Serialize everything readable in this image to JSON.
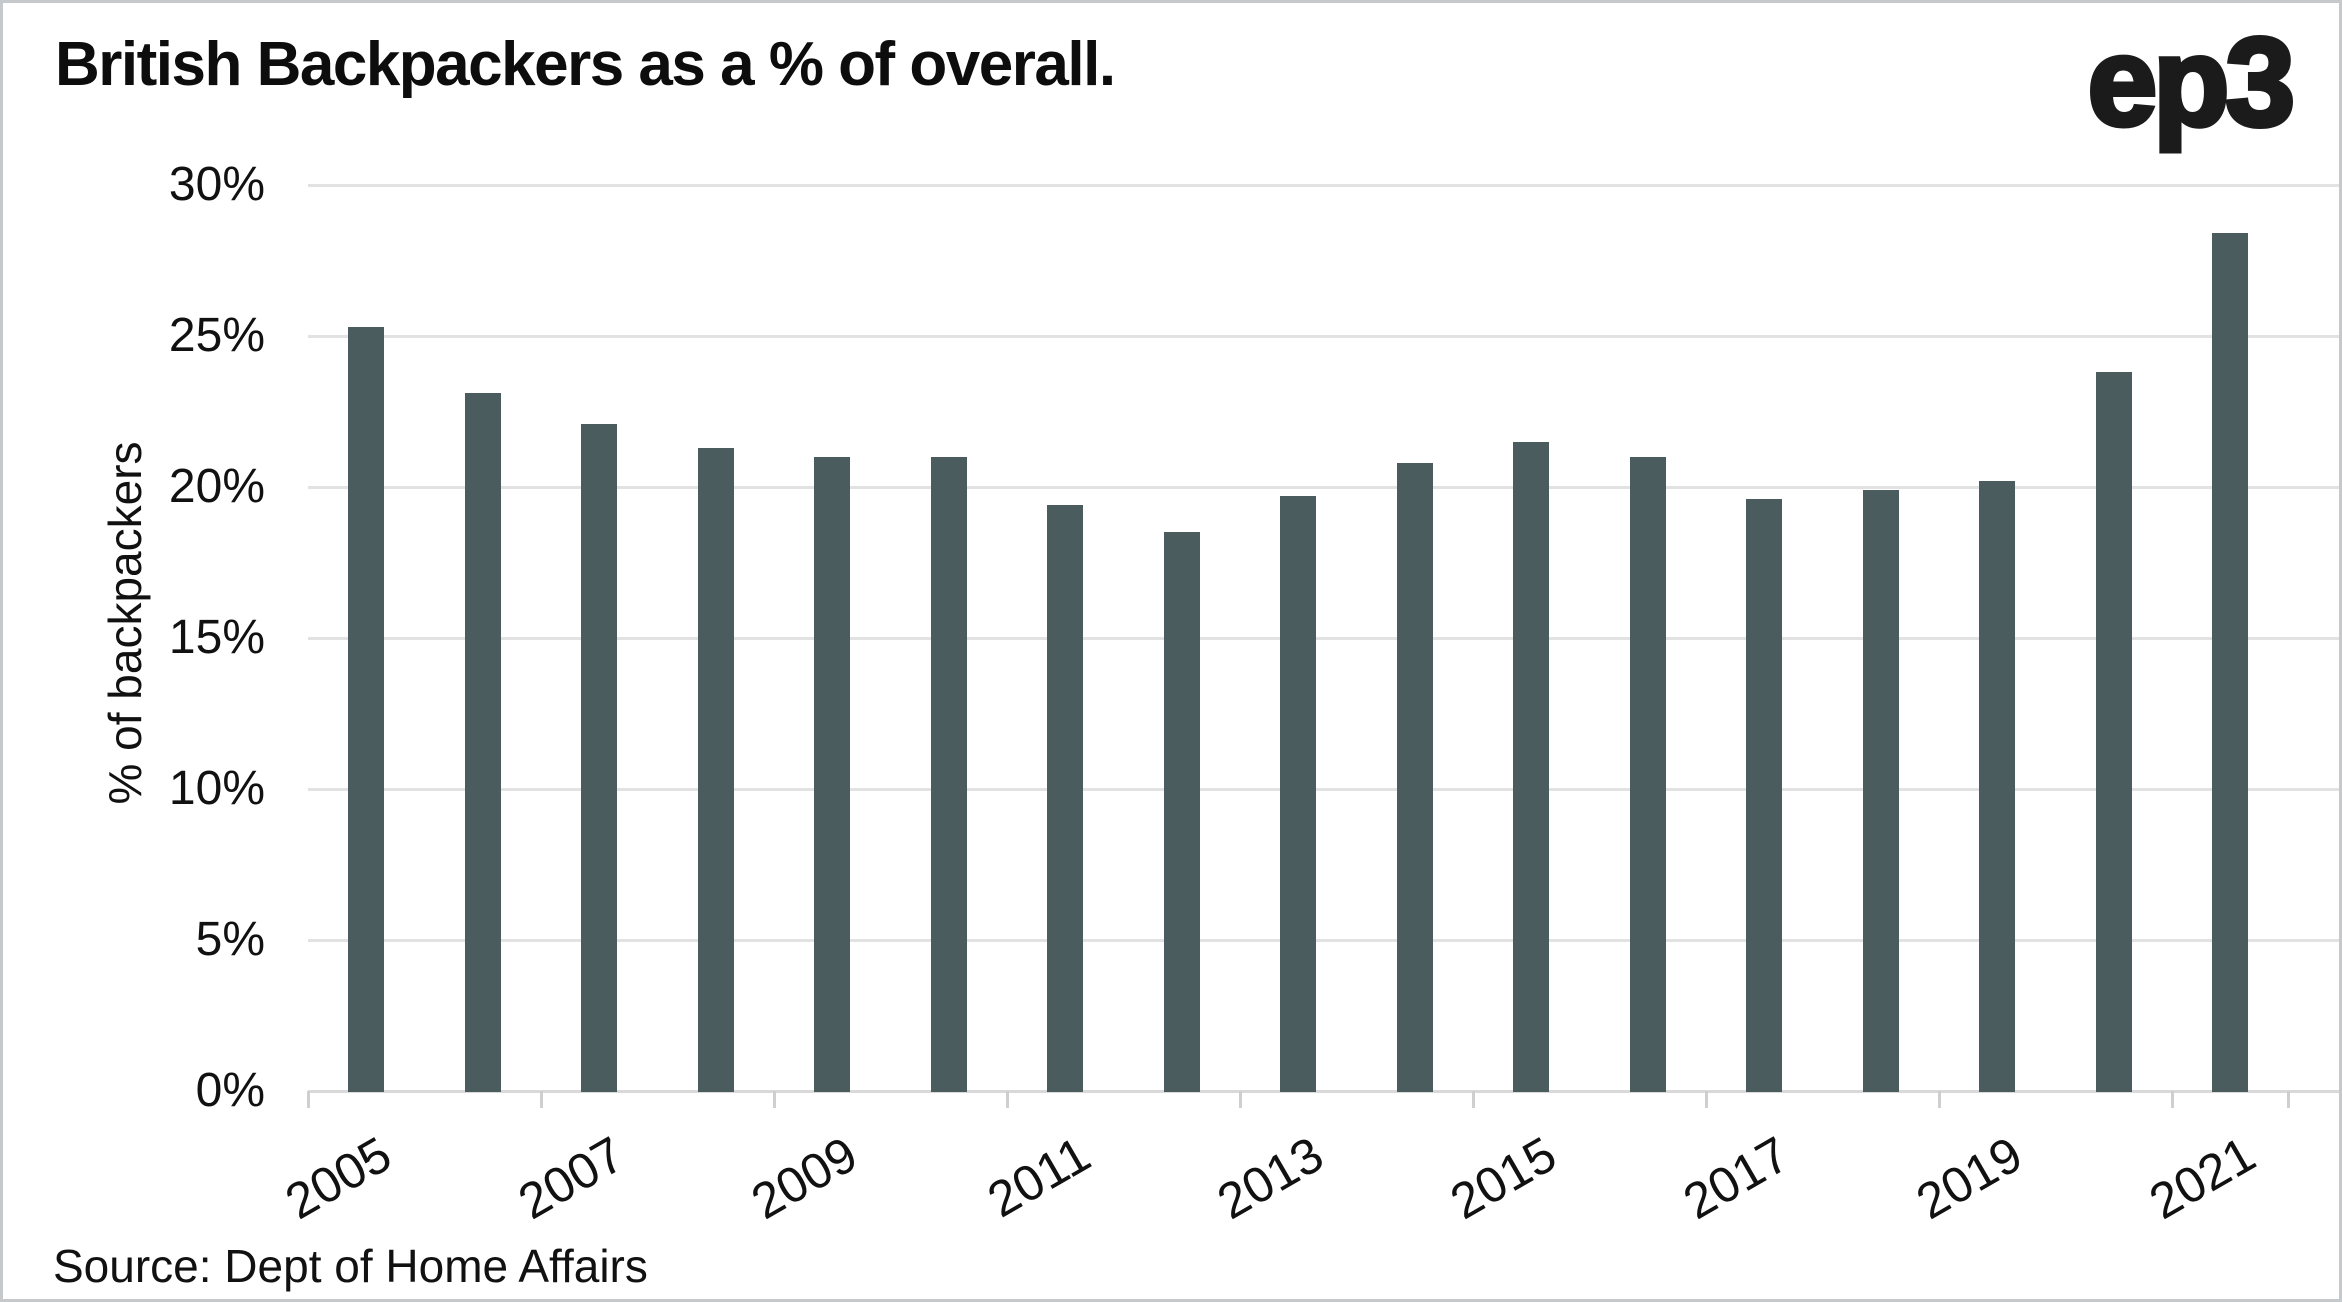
{
  "chart_data": {
    "type": "bar",
    "title": "British Backpackers as a % of overall.",
    "logo": "ep3",
    "ylabel": "% of backpackers",
    "source": "Source: Dept of Home Affairs",
    "categories": [
      "2005",
      "2006",
      "2007",
      "2008",
      "2009",
      "2010",
      "2011",
      "2012",
      "2013",
      "2014",
      "2015",
      "2016",
      "2017",
      "2018",
      "2019",
      "2020",
      "2021"
    ],
    "values": [
      25.3,
      23.1,
      22.1,
      21.3,
      21.0,
      21.0,
      19.4,
      18.5,
      19.7,
      20.8,
      21.5,
      21.0,
      19.6,
      19.9,
      20.2,
      23.8,
      28.4
    ],
    "x_tick_labels": [
      "2005",
      "2007",
      "2009",
      "2011",
      "2013",
      "2015",
      "2017",
      "2019",
      "2021"
    ],
    "y_ticks": [
      {
        "value": 0,
        "label": "0%"
      },
      {
        "value": 5,
        "label": "5%"
      },
      {
        "value": 10,
        "label": "10%"
      },
      {
        "value": 15,
        "label": "15%"
      },
      {
        "value": 20,
        "label": "20%"
      },
      {
        "value": 25,
        "label": "25%"
      },
      {
        "value": 30,
        "label": "30%"
      }
    ],
    "ylim": [
      0,
      30
    ],
    "grid": "horizontal",
    "legend_position": "none",
    "bar_color": "#4b5c5e",
    "grid_color": "#e2e2e2",
    "tick_color": "#cfcfcf",
    "text_color": "#111111",
    "background_color": "#ffffff"
  }
}
